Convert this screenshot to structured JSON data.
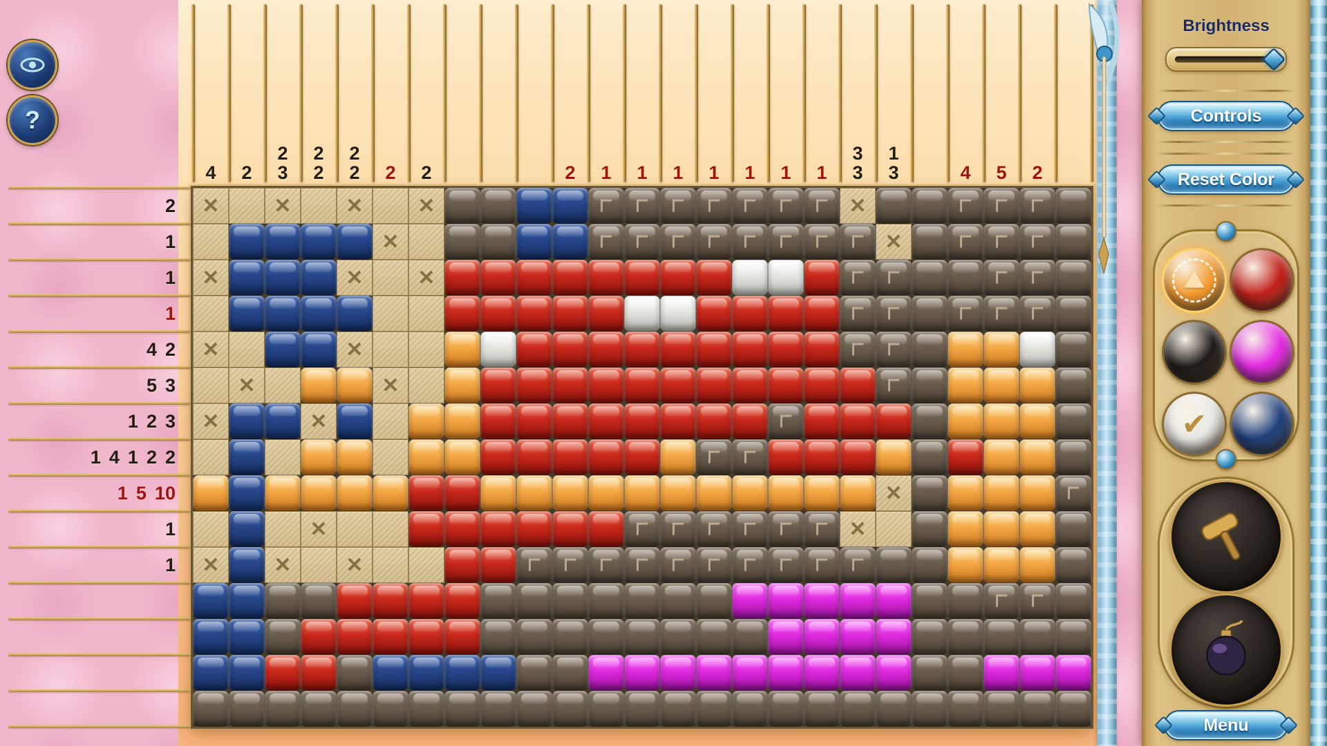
{
  "glyphs": {
    "x_mark": "✕",
    "check": "✔"
  },
  "hud": {
    "help_label": "?"
  },
  "sidebar": {
    "brightness_label": "Brightness",
    "controls_label": "Controls",
    "reset_label": "Reset Color",
    "menu_label": "Menu",
    "palette": [
      {
        "name": "orange",
        "color": "#f49b2e",
        "selected": true,
        "icon": "triangle"
      },
      {
        "name": "red",
        "color": "#c3201a",
        "selected": false,
        "icon": ""
      },
      {
        "name": "black",
        "color": "#201b18",
        "selected": false,
        "icon": ""
      },
      {
        "name": "magenta",
        "color": "#e42ae4",
        "selected": false,
        "icon": ""
      },
      {
        "name": "white",
        "color": "#eaeae4",
        "selected": false,
        "icon": "check"
      },
      {
        "name": "blue",
        "color": "#20407e",
        "selected": false,
        "icon": ""
      }
    ],
    "tools": [
      {
        "name": "mallet"
      },
      {
        "name": "bomb"
      }
    ]
  },
  "puzzle": {
    "rows": 15,
    "cols": 25,
    "row_clues": [
      [
        [
          2,
          0
        ]
      ],
      [
        [
          1,
          0
        ]
      ],
      [
        [
          1,
          0
        ]
      ],
      [
        [
          1,
          1
        ]
      ],
      [
        [
          4,
          0
        ],
        [
          2,
          0
        ]
      ],
      [
        [
          5,
          0
        ],
        [
          3,
          0
        ]
      ],
      [
        [
          1,
          0
        ],
        [
          2,
          0
        ],
        [
          3,
          0
        ]
      ],
      [
        [
          1,
          0
        ],
        [
          4,
          0
        ],
        [
          1,
          0
        ],
        [
          2,
          0
        ],
        [
          2,
          0
        ]
      ],
      [
        [
          1,
          1
        ],
        [
          5,
          1
        ],
        [
          10,
          1
        ]
      ],
      [
        [
          1,
          0
        ]
      ],
      [
        [
          1,
          0
        ]
      ],
      [],
      [],
      [],
      []
    ],
    "col_clues": [
      [
        [
          4,
          0
        ]
      ],
      [
        [
          2,
          0
        ]
      ],
      [
        [
          2,
          0
        ],
        [
          3,
          0
        ]
      ],
      [
        [
          2,
          0
        ],
        [
          2,
          0
        ]
      ],
      [
        [
          2,
          0
        ],
        [
          2,
          0
        ]
      ],
      [
        [
          2,
          1
        ]
      ],
      [
        [
          2,
          0
        ]
      ],
      [],
      [],
      [],
      [
        [
          2,
          1
        ]
      ],
      [
        [
          1,
          1
        ]
      ],
      [
        [
          1,
          1
        ]
      ],
      [
        [
          1,
          1
        ]
      ],
      [
        [
          1,
          1
        ]
      ],
      [
        [
          1,
          1
        ]
      ],
      [
        [
          1,
          1
        ]
      ],
      [
        [
          1,
          1
        ]
      ],
      [
        [
          3,
          0
        ],
        [
          3,
          0
        ]
      ],
      [
        [
          1,
          0
        ],
        [
          3,
          0
        ]
      ],
      [],
      [
        [
          4,
          1
        ]
      ],
      [
        [
          5,
          1
        ]
      ],
      [
        [
          2,
          1
        ]
      ],
      []
    ],
    "cells": [
      "x.x.x.xKKBBGGGGGGGxKKGGGK",
      ".BBBBx.KKBBGGGGGGGGxKGGGK",
      "xBBBx.xRRRRRRRRWWRGGKKGGK",
      ".BBBB..RRRRRWWRRRRGGKGGGK",
      "x.BBx..OWRRRRRRRRRGGKOOWK",
      ".x.OOx.ORRRRRRRRRRRGKOOOK",
      "xBBxB.OORRRRRRRRGRRRKOOOK",
      ".B.OO.OORRRRROGGRRROKROOK",
      "OBOOOORROOOOOOOOOOOxKOOOG",
      ".B.x..RRRRRRGGGGGGx.KOOOK",
      "xBx.x..RRGGGGGGGGGGKKOOOK",
      "BBKKRRRRKKKKKKKMMMMMKKGGK",
      "BBKRRRRRKKKKKKKKMMMMKKKKK",
      "BBRRKBBBBKKMMMMMMMMMKKMMM",
      "KKKKKKKKKKKKKKKKKKKKKKKKK"
    ],
    "legend": {
      ".": "empty",
      "x": "marked-empty",
      "B": "blue",
      "R": "red",
      "O": "orange",
      "W": "white",
      "M": "magenta",
      "K": "brown",
      "G": "brown-pattern"
    }
  },
  "colors": {
    "tile_blue": "#27488c",
    "tile_red": "#cc2a1c",
    "tile_orange": "#f5a845",
    "tile_white": "#e6e6e0",
    "tile_magenta": "#e02ae0",
    "tile_brown": "#6b5e4e",
    "board_empty": "#d8c394",
    "clue_dark": "#241c12",
    "clue_red": "#9e1510",
    "button_blue": "#2a85c0",
    "sidebar_tan": "#d3b272",
    "wall_pink": "#f0b6cc"
  }
}
